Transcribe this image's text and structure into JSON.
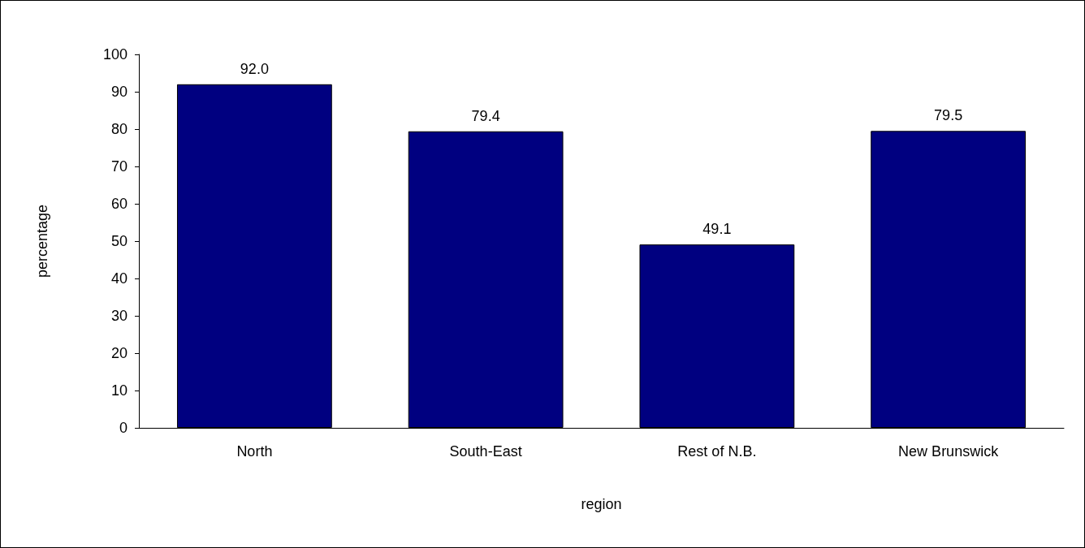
{
  "chart_data": {
    "type": "bar",
    "xlabel": "region",
    "ylabel": "percentage",
    "categories": [
      "North",
      "South-East",
      "Rest of N.B.",
      "New Brunswick"
    ],
    "series": [
      {
        "color": "#000080",
        "values": [
          92.0,
          79.4,
          49.1,
          79.5
        ],
        "value_labels": [
          "92.0",
          "79.4",
          "49.1",
          "79.5"
        ]
      }
    ],
    "ylim": [
      0,
      100
    ],
    "yticks": [
      0,
      10,
      20,
      30,
      40,
      50,
      60,
      70,
      80,
      90,
      100
    ],
    "grid": false
  }
}
